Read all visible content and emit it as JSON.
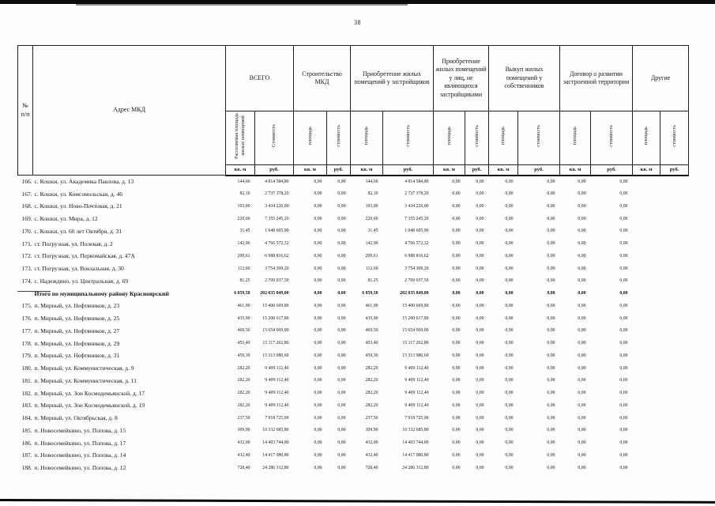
{
  "page": {
    "number": "38",
    "paper_color": "#fefefd",
    "ink_color": "#161616"
  },
  "table": {
    "header": {
      "num_col": "№ п/п",
      "address_col": "Адрес МКД",
      "groups": [
        {
          "label": "ВСЕГО",
          "sub": [
            "Расселяемая площадь жилых помещений",
            "Стоимость"
          ]
        },
        {
          "label": "Строительство МКД",
          "sub": [
            "площадь",
            "стоимость"
          ]
        },
        {
          "label": "Приобретение жилых помещений у застройщиков",
          "sub": [
            "площадь",
            "стоимость"
          ]
        },
        {
          "label": "Приобретение жилых помещений у лиц, не являющихся застройщиками",
          "sub": [
            "площадь",
            "стоимость"
          ]
        },
        {
          "label": "Выкуп жилых помещений у собственников",
          "sub": [
            "площадь",
            "стоимость"
          ]
        },
        {
          "label": "Договор о развитии застроенной территории",
          "sub": [
            "площадь",
            "стоимость"
          ]
        },
        {
          "label": "Другие",
          "sub": [
            "площадь",
            "стоимость"
          ]
        }
      ],
      "units": {
        "area": "кв. м",
        "cost": "руб."
      }
    },
    "rows": [
      {
        "num": "166.",
        "address": "с. Кошки, ул. Академика Павлова, д. 13",
        "values": [
          "144,60",
          "4 814 584,80",
          "0,00",
          "0,00",
          "144,60",
          "4 814 584,80",
          "0,00",
          "0,00",
          "0,00",
          "0,00",
          "0,00",
          "0,00",
          "",
          ""
        ]
      },
      {
        "num": "167.",
        "address": "с. Кошки, ул. Комсомольская, д. 46",
        "values": [
          "82,10",
          "2 737 378,20",
          "0,00",
          "0,00",
          "82,10",
          "2 737 378,20",
          "0,00",
          "0,00",
          "0,00",
          "0,00",
          "0,00",
          "0,00",
          "",
          ""
        ]
      },
      {
        "num": "168.",
        "address": "с. Кошки, ул. Ново-Почтовая, д. 21",
        "values": [
          "103,00",
          "3 434 226,00",
          "0,00",
          "0,00",
          "103,00",
          "3 434 226,00",
          "0,00",
          "0,00",
          "0,00",
          "0,00",
          "0,00",
          "0,00",
          "",
          ""
        ]
      },
      {
        "num": "169.",
        "address": "с. Кошки, ул. Мира, д. 12",
        "values": [
          "220,60",
          "7 355 245,20",
          "0,00",
          "0,00",
          "220,60",
          "7 355 245,20",
          "0,00",
          "0,00",
          "0,00",
          "0,00",
          "0,00",
          "0,00",
          "",
          ""
        ]
      },
      {
        "num": "170.",
        "address": "с. Кошки, ул. 60 лет Октября, д. 31",
        "values": [
          "31,45",
          "1 048 605,90",
          "0,00",
          "0,00",
          "31,45",
          "1 048 605,90",
          "0,00",
          "0,00",
          "0,00",
          "0,00",
          "0,00",
          "0,00",
          "",
          ""
        ]
      },
      {
        "num": "171.",
        "address": "ст. Погрузная, ул. Полевая, д. 2",
        "values": [
          "142,96",
          "4 766 572,32",
          "0,00",
          "0,00",
          "142,96",
          "4 766 572,32",
          "0,00",
          "0,00",
          "0,00",
          "0,00",
          "0,00",
          "0,00",
          "",
          ""
        ]
      },
      {
        "num": "172.",
        "address": "ст. Погрузная, ул. Первомайская, д. 47А",
        "values": [
          "209,61",
          "6 988 816,62",
          "0,00",
          "0,00",
          "209,61",
          "6 988 816,62",
          "0,00",
          "0,00",
          "0,00",
          "0,00",
          "0,00",
          "0,00",
          "",
          ""
        ]
      },
      {
        "num": "173.",
        "address": "ст. Погрузная, ул. Вокзальная, д. 30",
        "values": [
          "112,60",
          "3 754 309,20",
          "0,00",
          "0,00",
          "112,60",
          "3 754 309,20",
          "0,00",
          "0,00",
          "0,00",
          "0,00",
          "0,00",
          "0,00",
          "",
          ""
        ]
      },
      {
        "num": "174.",
        "address": "с. Надеждино, ул. Центральная, д. 69",
        "values": [
          "81,25",
          "2 709 037,50",
          "0,00",
          "0,00",
          "81,25",
          "2 709 037,50",
          "0,00",
          "0,00",
          "0,00",
          "0,00",
          "0,00",
          "0,00",
          "",
          ""
        ]
      },
      {
        "num": "",
        "total": true,
        "address": "Итого по муниципальному району Красноярский",
        "values": [
          "6 059,50",
          "202 035 849,00",
          "0,00",
          "0,00",
          "6 059,50",
          "202 035 849,00",
          "0,00",
          "0,00",
          "0,00",
          "0,00",
          "0,00",
          "0,00",
          "",
          ""
        ]
      },
      {
        "num": "175.",
        "address": "п. Мирный, ул. Нефтяников, д. 23",
        "values": [
          "461,90",
          "15 400 669,80",
          "0,00",
          "0,00",
          "461,90",
          "15 400 669,80",
          "0,00",
          "0,00",
          "0,00",
          "0,00",
          "0,00",
          "0,00",
          "",
          ""
        ]
      },
      {
        "num": "176.",
        "address": "п. Мирный, ул. Нефтяников, д. 25",
        "values": [
          "435,90",
          "15 200 617,80",
          "0,00",
          "0,00",
          "435,90",
          "15 200 617,80",
          "0,00",
          "0,00",
          "0,00",
          "0,00",
          "0,00",
          "0,00",
          "",
          ""
        ]
      },
      {
        "num": "177.",
        "address": "п. Мирный, ул. Нефтяников, д. 27",
        "values": [
          "469,50",
          "15 654 069,00",
          "0,00",
          "0,00",
          "469,50",
          "15 654 069,00",
          "0,00",
          "0,00",
          "0,00",
          "0,00",
          "0,00",
          "0,00",
          "",
          ""
        ]
      },
      {
        "num": "178.",
        "address": "п. Мирный, ул. Нефтяников, д. 29",
        "values": [
          "453,40",
          "15 117 262,80",
          "0,00",
          "0,00",
          "453,40",
          "15 117 262,80",
          "0,00",
          "0,00",
          "0,00",
          "0,00",
          "0,00",
          "0,00",
          "",
          ""
        ]
      },
      {
        "num": "179.",
        "address": "п. Мирный, ул. Нефтяников, д. 31",
        "values": [
          "459,30",
          "15 313 980,60",
          "0,00",
          "0,00",
          "459,30",
          "15 313 980,60",
          "0,00",
          "0,00",
          "0,00",
          "0,00",
          "0,00",
          "0,00",
          "",
          ""
        ]
      },
      {
        "num": "180.",
        "address": "п. Мирный, ул. Коммунистическая, д. 9",
        "values": [
          "282,20",
          "9 409 112,40",
          "0,00",
          "0,00",
          "282,20",
          "9 409 112,40",
          "0,00",
          "0,00",
          "0,00",
          "0,00",
          "0,00",
          "0,00",
          "",
          ""
        ]
      },
      {
        "num": "181.",
        "address": "п. Мирный, ул. Коммунистическая, д. 11",
        "values": [
          "282,20",
          "9 409 112,40",
          "0,00",
          "0,00",
          "282,20",
          "9 409 112,40",
          "0,00",
          "0,00",
          "0,00",
          "0,00",
          "0,00",
          "0,00",
          "",
          ""
        ]
      },
      {
        "num": "182.",
        "address": "п. Мирный, ул. Зои Космодемьянской, д. 17",
        "values": [
          "282,20",
          "9 409 112,40",
          "0,00",
          "0,00",
          "282,20",
          "9 409 112,40",
          "0,00",
          "0,00",
          "0,00",
          "0,00",
          "0,00",
          "0,00",
          "",
          ""
        ]
      },
      {
        "num": "183.",
        "address": "п. Мирный, ул. Зои Космодемьянской, д. 19",
        "values": [
          "282,20",
          "9 409 112,40",
          "0,00",
          "0,00",
          "282,20",
          "9 409 112,40",
          "0,00",
          "0,00",
          "0,00",
          "0,00",
          "0,00",
          "0,00",
          "",
          ""
        ]
      },
      {
        "num": "184.",
        "address": "п. Мирный, ул. Октябрьская, д. 8",
        "values": [
          "237,50",
          "7 918 725,00",
          "0,00",
          "0,00",
          "237,50",
          "7 918 725,00",
          "0,00",
          "0,00",
          "0,00",
          "0,00",
          "0,00",
          "0,00",
          "",
          ""
        ]
      },
      {
        "num": "185.",
        "address": "п. Новосемейкино, ул. Попова, д. 15",
        "values": [
          "309,90",
          "10 332 685,80",
          "0,00",
          "0,00",
          "309,90",
          "10 332 685,80",
          "0,00",
          "0,00",
          "0,00",
          "0,00",
          "0,00",
          "0,00",
          "",
          ""
        ]
      },
      {
        "num": "186.",
        "address": "п. Новосемейкино, ул. Попова, д. 17",
        "values": [
          "432,00",
          "14 403 744,00",
          "0,00",
          "0,00",
          "432,00",
          "14 403 744,00",
          "0,00",
          "0,00",
          "0,00",
          "0,00",
          "0,00",
          "0,00",
          "",
          ""
        ]
      },
      {
        "num": "187.",
        "address": "п. Новосемейкино, ул. Попова, д. 14",
        "values": [
          "432,40",
          "14 417 080,80",
          "0,00",
          "0,00",
          "432,40",
          "14 417 080,80",
          "0,00",
          "0,00",
          "0,00",
          "0,00",
          "0,00",
          "0,00",
          "",
          ""
        ]
      },
      {
        "num": "188.",
        "address": "п. Новосемейкино, ул. Попова, д. 12",
        "values": [
          "728,40",
          "24 286 312,80",
          "0,00",
          "0,00",
          "728,40",
          "24 286 312,80",
          "0,00",
          "0,00",
          "0,00",
          "0,00",
          "0,00",
          "0,00",
          "",
          ""
        ]
      }
    ]
  }
}
